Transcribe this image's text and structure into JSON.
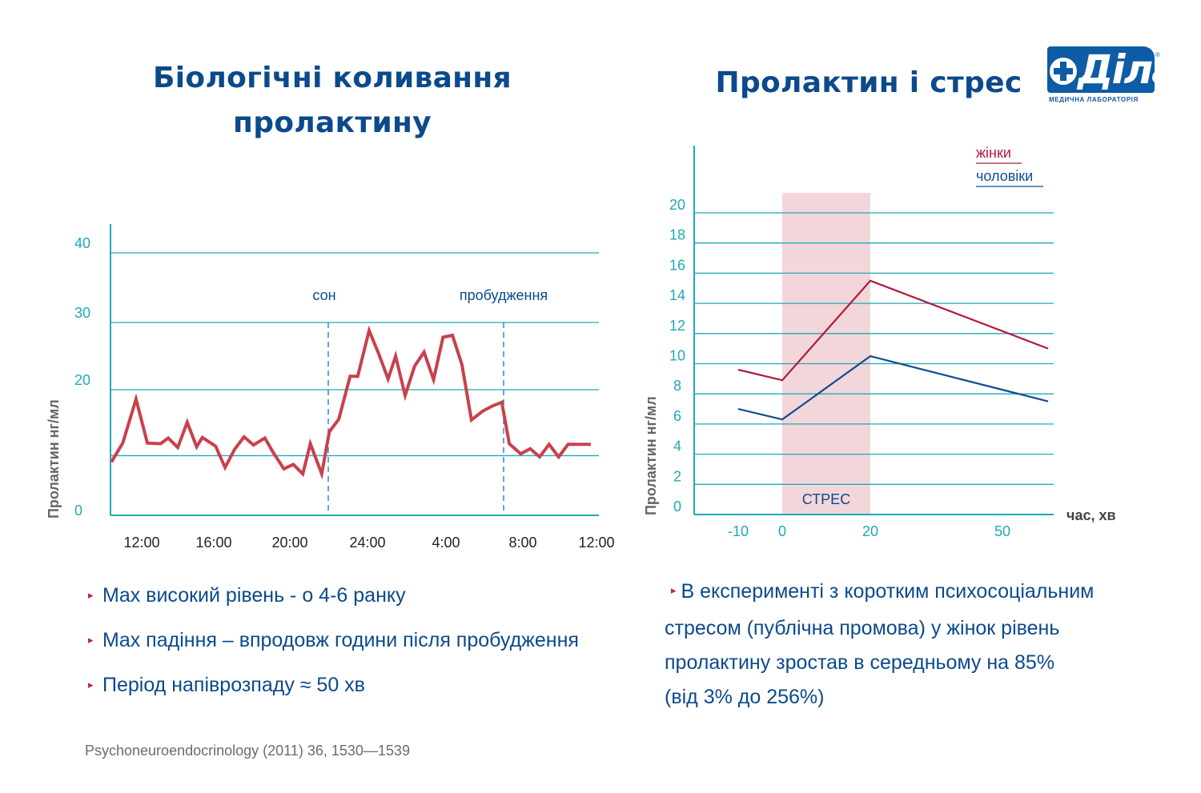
{
  "titles": {
    "left_line1": "Біологічні коливання",
    "left_line2": "пролактину",
    "right": "Пролактин і стрес"
  },
  "logo": {
    "text": "Діла",
    "subtitle": "МЕДИЧНА ЛАБОРАТОРІЯ",
    "reg": "®"
  },
  "colors": {
    "title_blue": "#0b4a8b",
    "axis_teal": "#1fa9b8",
    "left_line": "#c9404c",
    "women": "#b01a3c",
    "men": "#104d8f",
    "stress_band": "#f3d6da"
  },
  "chart_data": [
    {
      "type": "line",
      "title": "Біологічні коливання пролактину",
      "ylabel": "Пролактин нг/мл",
      "xlabel": "",
      "ylim": [
        0,
        40
      ],
      "yticks": [
        "0",
        "20",
        "30",
        "40"
      ],
      "yticks_values": [
        0,
        20,
        30,
        40
      ],
      "extra_gridline": 9.5,
      "xticks": [
        "12:00",
        "16:00",
        "20:00",
        "24:00",
        "4:00",
        "8:00",
        "12:00"
      ],
      "x_range_hours": [
        10,
        36.5
      ],
      "annotations": [
        {
          "label": "сон",
          "x": 21.5
        },
        {
          "label": "пробудження",
          "x": 31
        }
      ],
      "series": [
        {
          "name": "Пролактин",
          "x": [
            10.4,
            11.0,
            11.7,
            12.3,
            13.0,
            13.4,
            13.9,
            14.4,
            14.9,
            15.2,
            15.9,
            16.4,
            16.9,
            17.4,
            17.9,
            18.5,
            18.9,
            19.5,
            20.0,
            20.5,
            20.9,
            21.5,
            21.9,
            22.4,
            23.0,
            23.4,
            24.0,
            24.5,
            25.0,
            25.4,
            25.9,
            26.4,
            26.9,
            27.4,
            27.9,
            28.4,
            28.9,
            29.4,
            30.0,
            30.5,
            31.0,
            31.4,
            32.0,
            32.5,
            33.0,
            33.5,
            34.0,
            34.5,
            35.0,
            35.7
          ],
          "values": [
            8.5,
            11.5,
            18.5,
            11.5,
            11.4,
            12.3,
            10.8,
            14.8,
            10.9,
            12.4,
            11.0,
            7.6,
            10.5,
            12.5,
            11.2,
            12.3,
            10.2,
            7.4,
            8.1,
            6.6,
            11.4,
            6.6,
            13.3,
            15.3,
            22.0,
            22.0,
            28.8,
            25.4,
            21.6,
            25.0,
            19.1,
            23.5,
            25.6,
            21.5,
            27.8,
            28.1,
            23.7,
            15.2,
            16.6,
            17.4,
            18.0,
            11.4,
            9.8,
            10.6,
            9.3,
            11.3,
            9.3,
            11.3,
            11.3,
            11.3
          ]
        }
      ]
    },
    {
      "type": "line",
      "title": "Пролактин і стрес",
      "ylabel": "Пролактин нг/мл",
      "xlabel": "час, хв",
      "ylim": [
        0,
        20
      ],
      "yticks": [
        "0",
        "2",
        "4",
        "6",
        "8",
        "10",
        "12",
        "14",
        "16",
        "18",
        "20"
      ],
      "xticks": [
        "-10",
        "0",
        "20",
        "50"
      ],
      "x": [
        -10,
        0,
        20,
        50
      ],
      "shaded_region": {
        "label": "СТРЕС",
        "x_start": 0,
        "x_end": 20
      },
      "legend_placement": "top-right",
      "series": [
        {
          "name": "жінки",
          "values": [
            9.6,
            8.9,
            15.5,
            11.0
          ]
        },
        {
          "name": "чоловіки",
          "values": [
            7.0,
            6.3,
            10.5,
            7.5
          ]
        }
      ]
    }
  ],
  "bullets_left": [
    "Max високий рівень - о 4-6 ранку",
    "Max падіння – впродовж години після пробудження",
    "Період напіврозпаду ≈ 50 хв"
  ],
  "bullet_right": {
    "line1": "В експерименті з коротким психосоціальним",
    "line2": "стресом (публічна промова) у жінок рівень",
    "line3": "пролактину зростав в середньому на 85%",
    "line4": "(від 3% до 256%)"
  },
  "bullet_marker": "▸",
  "citation": "Psychoneuroendocrinology (2011) 36, 1530—1539"
}
